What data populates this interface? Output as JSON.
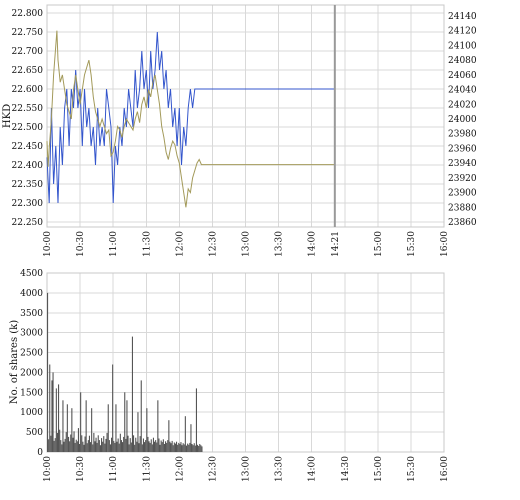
{
  "chart_data": [
    {
      "type": "line",
      "title": "",
      "ylabel": "HKD",
      "x_ticks": [
        "10:00",
        "10:30",
        "11:00",
        "11:30",
        "12:00",
        "12:30",
        "13:00",
        "13:30",
        "14:00",
        "14:21",
        "15:00",
        "15:30",
        "16:00"
      ],
      "x_range_minutes": [
        0,
        360
      ],
      "now_marker": "14:21",
      "now_marker_minute": 261,
      "ylim_left": [
        22.25,
        22.8
      ],
      "left_ticks": [
        "22.250",
        "22.300",
        "22.350",
        "22.400",
        "22.450",
        "22.500",
        "22.550",
        "22.600",
        "22.650",
        "22.700",
        "22.750",
        "22.800"
      ],
      "ylim_right": [
        23850,
        24150
      ],
      "right_ticks": [
        "23860",
        "23880",
        "23900",
        "23920",
        "23940",
        "23960",
        "23980",
        "24000",
        "24020",
        "24040",
        "24060",
        "24080",
        "24100",
        "24120",
        "24140"
      ],
      "grid": true,
      "colors": {
        "price": "#3355cc",
        "index": "#a39a5a",
        "marker": "#999999"
      },
      "series": [
        {
          "axis": "left",
          "points": [
            [
              0,
              22.42
            ],
            [
              2,
              22.3
            ],
            [
              4,
              22.55
            ],
            [
              6,
              22.35
            ],
            [
              8,
              22.45
            ],
            [
              10,
              22.3
            ],
            [
              12,
              22.5
            ],
            [
              14,
              22.4
            ],
            [
              16,
              22.55
            ],
            [
              18,
              22.6
            ],
            [
              20,
              22.45
            ],
            [
              22,
              22.6
            ],
            [
              24,
              22.55
            ],
            [
              26,
              22.65
            ],
            [
              28,
              22.55
            ],
            [
              30,
              22.6
            ],
            [
              32,
              22.45
            ],
            [
              34,
              22.6
            ],
            [
              36,
              22.5
            ],
            [
              38,
              22.55
            ],
            [
              40,
              22.45
            ],
            [
              42,
              22.5
            ],
            [
              44,
              22.4
            ],
            [
              46,
              22.55
            ],
            [
              48,
              22.45
            ],
            [
              50,
              22.5
            ],
            [
              52,
              22.45
            ],
            [
              54,
              22.6
            ],
            [
              56,
              22.55
            ],
            [
              58,
              22.5
            ],
            [
              60,
              22.3
            ],
            [
              62,
              22.45
            ],
            [
              64,
              22.4
            ],
            [
              66,
              22.5
            ],
            [
              68,
              22.45
            ],
            [
              70,
              22.55
            ],
            [
              72,
              22.5
            ],
            [
              74,
              22.6
            ],
            [
              76,
              22.55
            ],
            [
              78,
              22.5
            ],
            [
              80,
              22.65
            ],
            [
              82,
              22.55
            ],
            [
              84,
              22.6
            ],
            [
              86,
              22.7
            ],
            [
              88,
              22.6
            ],
            [
              90,
              22.65
            ],
            [
              92,
              22.55
            ],
            [
              94,
              22.7
            ],
            [
              96,
              22.6
            ],
            [
              98,
              22.65
            ],
            [
              100,
              22.75
            ],
            [
              102,
              22.65
            ],
            [
              104,
              22.7
            ],
            [
              106,
              22.6
            ],
            [
              108,
              22.65
            ],
            [
              110,
              22.55
            ],
            [
              112,
              22.6
            ],
            [
              114,
              22.5
            ],
            [
              116,
              22.55
            ],
            [
              118,
              22.45
            ],
            [
              120,
              22.55
            ],
            [
              122,
              22.4
            ],
            [
              124,
              22.5
            ],
            [
              126,
              22.45
            ],
            [
              128,
              22.55
            ],
            [
              130,
              22.6
            ],
            [
              132,
              22.55
            ],
            [
              134,
              22.6
            ],
            [
              136,
              22.6
            ],
            [
              261,
              22.6
            ]
          ]
        },
        {
          "axis": "right",
          "points": [
            [
              0,
              23970
            ],
            [
              1,
              23935
            ],
            [
              2,
              23960
            ],
            [
              4,
              24000
            ],
            [
              6,
              24060
            ],
            [
              8,
              24100
            ],
            [
              9,
              24120
            ],
            [
              10,
              24080
            ],
            [
              12,
              24050
            ],
            [
              14,
              24060
            ],
            [
              16,
              24040
            ],
            [
              18,
              24020
            ],
            [
              20,
              24010
            ],
            [
              22,
              24000
            ],
            [
              24,
              24040
            ],
            [
              26,
              24060
            ],
            [
              28,
              24040
            ],
            [
              30,
              24020
            ],
            [
              32,
              24040
            ],
            [
              34,
              24060
            ],
            [
              36,
              24070
            ],
            [
              38,
              24080
            ],
            [
              40,
              24060
            ],
            [
              42,
              24030
            ],
            [
              44,
              24010
            ],
            [
              46,
              24000
            ],
            [
              48,
              23990
            ],
            [
              50,
              24000
            ],
            [
              52,
              23990
            ],
            [
              54,
              23980
            ],
            [
              56,
              23985
            ],
            [
              58,
              23950
            ],
            [
              60,
              23955
            ],
            [
              62,
              23970
            ],
            [
              64,
              23990
            ],
            [
              66,
              23985
            ],
            [
              68,
              23975
            ],
            [
              70,
              23990
            ],
            [
              72,
              24000
            ],
            [
              74,
              23995
            ],
            [
              76,
              23990
            ],
            [
              78,
              23985
            ],
            [
              80,
              24000
            ],
            [
              82,
              24010
            ],
            [
              84,
              23995
            ],
            [
              86,
              24020
            ],
            [
              88,
              24030
            ],
            [
              90,
              24015
            ],
            [
              92,
              24040
            ],
            [
              94,
              24030
            ],
            [
              96,
              24050
            ],
            [
              98,
              24060
            ],
            [
              100,
              24040
            ],
            [
              102,
              24020
            ],
            [
              104,
              23990
            ],
            [
              106,
              23975
            ],
            [
              108,
              23955
            ],
            [
              110,
              23945
            ],
            [
              112,
              23960
            ],
            [
              114,
              23970
            ],
            [
              116,
              23965
            ],
            [
              118,
              23950
            ],
            [
              120,
              23940
            ],
            [
              122,
              23920
            ],
            [
              124,
              23900
            ],
            [
              126,
              23880
            ],
            [
              128,
              23905
            ],
            [
              130,
              23900
            ],
            [
              132,
              23920
            ],
            [
              134,
              23930
            ],
            [
              136,
              23940
            ],
            [
              138,
              23945
            ],
            [
              140,
              23938
            ],
            [
              261,
              23938
            ]
          ]
        }
      ]
    },
    {
      "type": "bar",
      "title": "",
      "ylabel": "No. of shares (k)",
      "x_ticks": [
        "10:00",
        "10:30",
        "11:00",
        "11:30",
        "12:00",
        "12:30",
        "13:00",
        "13:30",
        "14:00",
        "14:30",
        "15:00",
        "15:30",
        "16:00"
      ],
      "x_range_minutes": [
        0,
        360
      ],
      "ylim": [
        0,
        4500
      ],
      "y_ticks": [
        "0",
        "500",
        "1000",
        "1500",
        "2000",
        "2500",
        "3000",
        "3500",
        "4000",
        "4500"
      ],
      "grid": true,
      "colors": {
        "bars": "#555555"
      },
      "spike_values": [
        [
          0,
          4000
        ],
        [
          2,
          2200
        ],
        [
          4,
          1800
        ],
        [
          5,
          2000
        ],
        [
          8,
          1600
        ],
        [
          10,
          1700
        ],
        [
          14,
          1300
        ],
        [
          18,
          1200
        ],
        [
          22,
          1100
        ],
        [
          30,
          1500
        ],
        [
          35,
          1300
        ],
        [
          40,
          1100
        ],
        [
          55,
          1200
        ],
        [
          59,
          2200
        ],
        [
          62,
          1200
        ],
        [
          70,
          1500
        ],
        [
          72,
          1300
        ],
        [
          77,
          2900
        ],
        [
          82,
          1000
        ],
        [
          85,
          1800
        ],
        [
          90,
          1100
        ],
        [
          100,
          1300
        ],
        [
          110,
          800
        ],
        [
          125,
          900
        ],
        [
          130,
          700
        ],
        [
          135,
          1600
        ]
      ],
      "volume_series": [
        220,
        320,
        260,
        410,
        180,
        620,
        280,
        350,
        160,
        480,
        240,
        560,
        300,
        190,
        420,
        260,
        330,
        500,
        210,
        380,
        270,
        440,
        190,
        360,
        520,
        230,
        310,
        270,
        600,
        200,
        340,
        420,
        260,
        180,
        390,
        470,
        220,
        300,
        410,
        250,
        340,
        190,
        480,
        270,
        360,
        230,
        420,
        300,
        170,
        350,
        260,
        400,
        210,
        330,
        480,
        240,
        300,
        190,
        360,
        420,
        280,
        230,
        400,
        260,
        340,
        210,
        460,
        300,
        250,
        380,
        200,
        330,
        270,
        410,
        190,
        350,
        240,
        300,
        420,
        180,
        360,
        260,
        310,
        220,
        400,
        280,
        190,
        340,
        250,
        300,
        210,
        380,
        270,
        230,
        320,
        190,
        360,
        260,
        300,
        240,
        210,
        340,
        180,
        290,
        250,
        320,
        200,
        270,
        230,
        300,
        190,
        260,
        220,
        280,
        170,
        240,
        210,
        260,
        180,
        230,
        200,
        250,
        170,
        220,
        190,
        240,
        160,
        210,
        180,
        230,
        150,
        200,
        170,
        220,
        160,
        190,
        180,
        150,
        200,
        170,
        140
      ]
    }
  ]
}
